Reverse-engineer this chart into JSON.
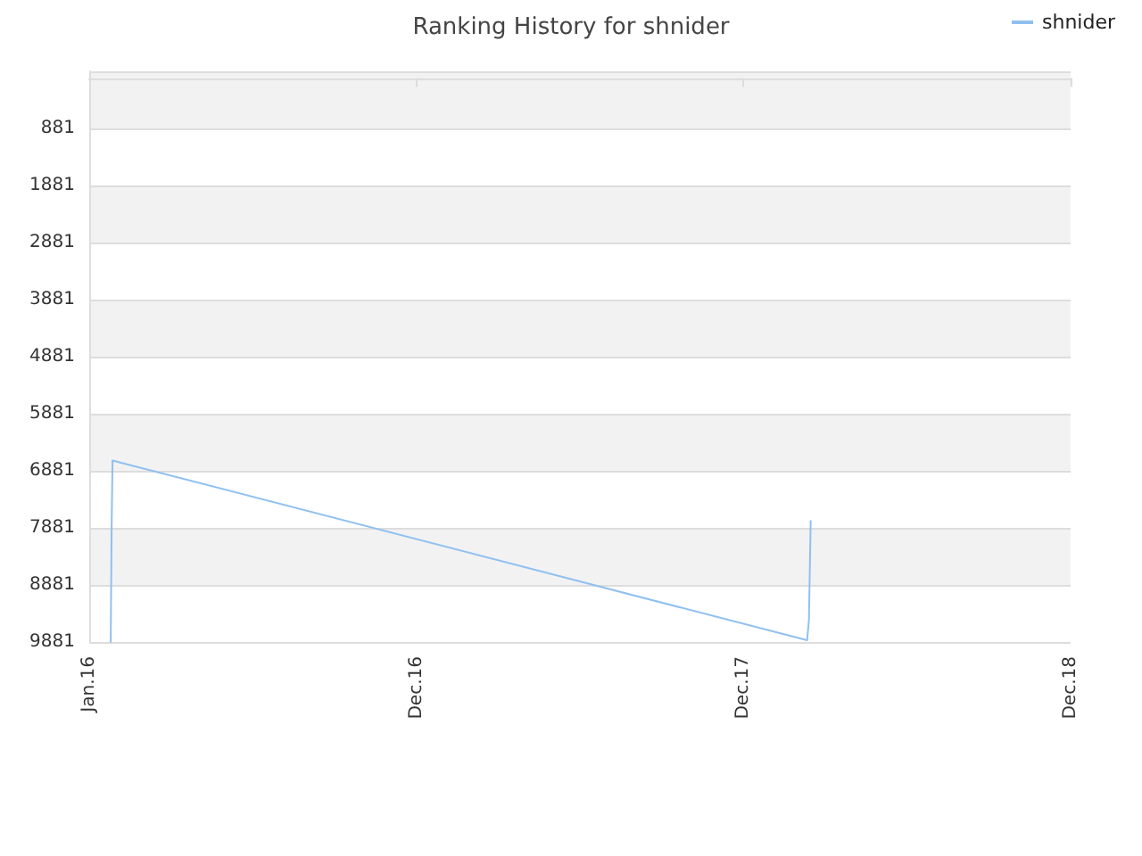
{
  "chart_data": {
    "type": "line",
    "title": "Ranking History for shnider",
    "xlim": [
      "2016-01-01",
      "2018-12-31"
    ],
    "xticks": [
      {
        "value": "2016-01-01",
        "label": "Jan.16"
      },
      {
        "value": "2016-12-31",
        "label": "Dec.16"
      },
      {
        "value": "2017-12-31",
        "label": "Dec.17"
      },
      {
        "value": "2018-12-31",
        "label": "Dec.18"
      }
    ],
    "ylim": [
      9881,
      -119
    ],
    "yticks": [
      881,
      1881,
      2881,
      3881,
      4881,
      5881,
      6881,
      7881,
      8881,
      9881
    ],
    "series": [
      {
        "name": "shnider",
        "color": "#90c0f0",
        "x": [
          "2016-01-25",
          "2016-01-26",
          "2016-01-27",
          "2018-03-12",
          "2018-03-14",
          "2018-03-16"
        ],
        "values": [
          9881,
          7881,
          6700,
          9850,
          9500,
          7760
        ]
      }
    ],
    "grid": "y",
    "legend": "top right",
    "marker": "none",
    "line_style": "solid"
  }
}
